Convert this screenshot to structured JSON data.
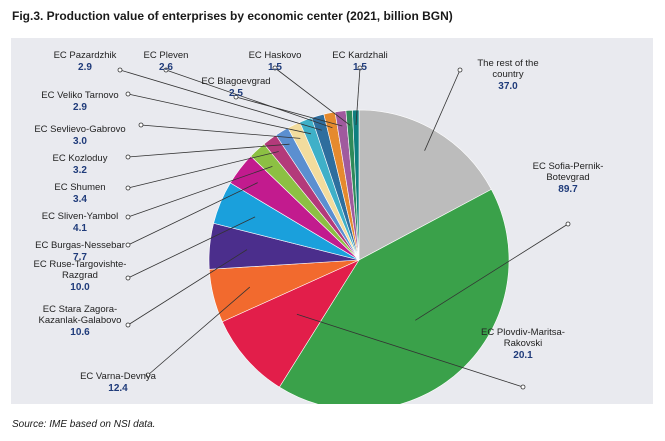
{
  "title": "Fig.3. Production value of enterprises by economic center (2021, billion BGN)",
  "source": "Source: IME based on NSI data.",
  "chart_data": {
    "type": "pie",
    "title": "Fig.3. Production value of enterprises by economic center (2021, billion BGN)",
    "unit": "billion BGN",
    "start_angle_deg": 0,
    "direction": "clockwise",
    "slices": [
      {
        "name": "The rest of the country",
        "lines": [
          "The rest of the",
          "country"
        ],
        "value": 37.0,
        "label": "37.0",
        "color": "#bcbcbc"
      },
      {
        "name": "EC Sofia-Pernik-Botevgrad",
        "lines": [
          "EC Sofia-Pernik-",
          "Botevgrad"
        ],
        "value": 89.7,
        "label": "89.7",
        "color": "#3aa14a"
      },
      {
        "name": "EC Plovdiv-Maritsa-Rakovski",
        "lines": [
          "EC Plovdiv-Maritsa-",
          "Rakovski"
        ],
        "value": 20.1,
        "label": "20.1",
        "color": "#e21e4a"
      },
      {
        "name": "EC Varna-Devnya",
        "lines": [
          "EC Varna-Devnya"
        ],
        "value": 12.4,
        "label": "12.4",
        "color": "#f26a2e"
      },
      {
        "name": "EC Stara Zagora-Kazanlak-Galabovo",
        "lines": [
          "EC Stara Zagora-",
          "Kazanlak-Galabovo"
        ],
        "value": 10.6,
        "label": "10.6",
        "color": "#4b2e8c"
      },
      {
        "name": "EC Ruse-Targovishte-Razgrad",
        "lines": [
          "EC Ruse-Targovishte-",
          "Razgrad"
        ],
        "value": 10.0,
        "label": "10.0",
        "color": "#1aa0dc"
      },
      {
        "name": "EC Burgas-Nessebar",
        "lines": [
          "EC Burgas-Nessebar"
        ],
        "value": 7.7,
        "label": "7.7",
        "color": "#c21b8e"
      },
      {
        "name": "EC Sliven-Yambol",
        "lines": [
          "EC Sliven-Yambol"
        ],
        "value": 4.1,
        "label": "4.1",
        "color": "#8cc043"
      },
      {
        "name": "EC Shumen",
        "lines": [
          "EC Shumen"
        ],
        "value": 3.4,
        "label": "3.4",
        "color": "#b33a7a"
      },
      {
        "name": "EC Kozloduy",
        "lines": [
          "EC Kozloduy"
        ],
        "value": 3.2,
        "label": "3.2",
        "color": "#5b8fd0"
      },
      {
        "name": "EC Sevlievo-Gabrovo",
        "lines": [
          "EC Sevlievo-Gabrovo"
        ],
        "value": 3.0,
        "label": "3.0",
        "color": "#f2dc9e"
      },
      {
        "name": "EC Veliko Tarnovo",
        "lines": [
          "EC Veliko Tarnovo"
        ],
        "value": 2.9,
        "label": "2.9",
        "color": "#3fb0c8"
      },
      {
        "name": "EC Pazardzhik",
        "lines": [
          "EC Pazardzhik"
        ],
        "value": 2.9,
        "label": "2.9",
        "color": "#2e6e9e"
      },
      {
        "name": "EC Pleven",
        "lines": [
          "EC Pleven"
        ],
        "value": 2.6,
        "label": "2.6",
        "color": "#e58a2e"
      },
      {
        "name": "EC Blagoevgrad",
        "lines": [
          "EC Blagoevgrad"
        ],
        "value": 2.5,
        "label": "2.5",
        "color": "#a05a9e"
      },
      {
        "name": "EC Haskovo",
        "lines": [
          "EC Haskovo"
        ],
        "value": 1.5,
        "label": "1.5",
        "color": "#2f8a5a"
      },
      {
        "name": "EC Kardzhali",
        "lines": [
          "EC Kardzhali"
        ],
        "value": 1.5,
        "label": "1.5",
        "color": "#0f7f7f"
      }
    ]
  }
}
